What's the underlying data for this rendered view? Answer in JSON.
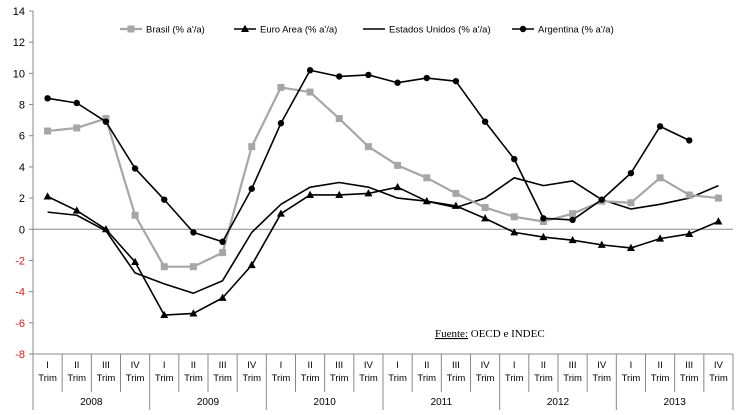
{
  "chart_data": {
    "type": "line",
    "title": "",
    "xlabel": "",
    "ylabel": "",
    "ylim": [
      -8,
      14
    ],
    "y_ticks": [
      -8,
      -6,
      -4,
      -2,
      0,
      2,
      4,
      6,
      8,
      10,
      12,
      14
    ],
    "negative_tick_color": "#e31a1c",
    "grid": false,
    "legend_position": "top",
    "categories": [
      [
        "I",
        "Trim"
      ],
      [
        "II",
        "Trim"
      ],
      [
        "III",
        "Trim"
      ],
      [
        "IV",
        "Trim"
      ],
      [
        "I",
        "Trim"
      ],
      [
        "II",
        "Trim"
      ],
      [
        "III",
        "Trim"
      ],
      [
        "IV",
        "Trim"
      ],
      [
        "I",
        "Trim"
      ],
      [
        "II",
        "Trim"
      ],
      [
        "III",
        "Trim"
      ],
      [
        "IV",
        "Trim"
      ],
      [
        "I",
        "Trim"
      ],
      [
        "II",
        "Trim"
      ],
      [
        "III",
        "Trim"
      ],
      [
        "IV",
        "Trim"
      ],
      [
        "I",
        "Trim"
      ],
      [
        "II",
        "Trim"
      ],
      [
        "III",
        "Trim"
      ],
      [
        "IV",
        "Trim"
      ],
      [
        "I",
        "Trim"
      ],
      [
        "II",
        "Trim"
      ],
      [
        "III",
        "Trim"
      ],
      [
        "IV",
        "Trim"
      ]
    ],
    "years": [
      "2008",
      "2009",
      "2010",
      "2011",
      "2012",
      "2013"
    ],
    "series": [
      {
        "name": "Brasil (% a'/a)",
        "color": "#a6a6a6",
        "marker": "square",
        "values": [
          6.3,
          6.5,
          7.1,
          0.9,
          -2.4,
          -2.4,
          -1.5,
          5.3,
          9.1,
          8.8,
          7.1,
          5.3,
          4.1,
          3.3,
          2.3,
          1.4,
          0.8,
          0.5,
          1.0,
          1.8,
          1.7,
          3.3,
          2.2,
          2.0
        ]
      },
      {
        "name": "Euro Area (% a'/a)",
        "color": "#000000",
        "marker": "triangle",
        "values": [
          2.1,
          1.2,
          0.0,
          -2.1,
          -5.5,
          -5.4,
          -4.4,
          -2.3,
          1.0,
          2.2,
          2.2,
          2.3,
          2.7,
          1.8,
          1.5,
          0.7,
          -0.2,
          -0.5,
          -0.7,
          -1.0,
          -1.2,
          -0.6,
          -0.3,
          0.5
        ]
      },
      {
        "name": "Estados Unidos (% a'/a)",
        "color": "#000000",
        "marker": "none",
        "values": [
          1.1,
          0.9,
          -0.1,
          -2.8,
          -3.5,
          -4.1,
          -3.3,
          -0.2,
          1.6,
          2.7,
          3.0,
          2.7,
          2.0,
          1.8,
          1.4,
          2.0,
          3.3,
          2.8,
          3.1,
          1.9,
          1.3,
          1.6,
          2.0,
          2.8
        ]
      },
      {
        "name": "Argentina (% a'/a)",
        "color": "#000000",
        "marker": "circle",
        "values": [
          8.4,
          8.1,
          6.9,
          3.9,
          1.9,
          -0.2,
          -0.8,
          2.6,
          6.8,
          10.2,
          9.8,
          9.9,
          9.4,
          9.7,
          9.5,
          6.9,
          4.5,
          0.7,
          0.6,
          1.9,
          3.6,
          6.6,
          5.7,
          null
        ]
      }
    ],
    "annotation": {
      "label": "Fuente:",
      "text": " OECD e INDEC"
    }
  }
}
